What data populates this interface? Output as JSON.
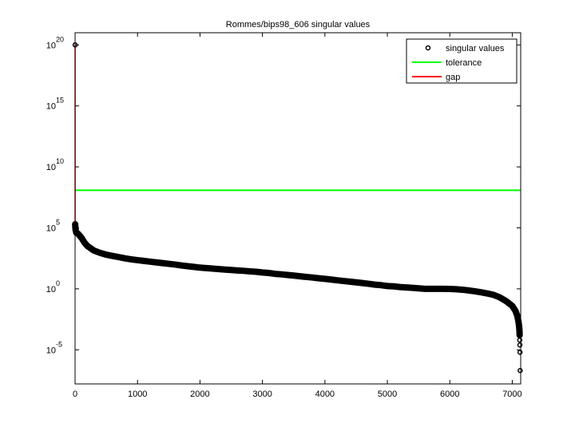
{
  "chart_data": {
    "type": "scatter",
    "title": "Rommes/bips98_606 singular values",
    "xlabel": "",
    "ylabel": "",
    "xlim": [
      0,
      7135
    ],
    "ylim": [
      1.6e-08,
      1e+21
    ],
    "yscale": "log",
    "grid": false,
    "legend_placement": "top-right",
    "x_ticks": [
      0,
      1000,
      2000,
      3000,
      4000,
      5000,
      6000,
      7000
    ],
    "x_tick_labels": [
      "0",
      "1000",
      "2000",
      "3000",
      "4000",
      "5000",
      "6000",
      "7000"
    ],
    "y_ticks": [
      1e-05,
      1,
      100000.0,
      10000000000.0,
      1000000000000000.0,
      1e+20
    ],
    "y_tick_base": "10",
    "y_tick_exponents": [
      "-5",
      "0",
      "5",
      "10",
      "15",
      "20"
    ],
    "legend": [
      {
        "label": "singular values",
        "kind": "marker",
        "color": "#000000"
      },
      {
        "label": "tolerance",
        "kind": "line",
        "color": "#00ff00"
      },
      {
        "label": "gap",
        "kind": "line",
        "color": "#ff0000"
      }
    ],
    "series": [
      {
        "name": "singular values",
        "color": "#000000",
        "marker": "circle",
        "x": [
          1,
          2,
          5,
          10,
          20,
          50,
          100,
          150,
          200,
          300,
          400,
          500,
          600,
          700,
          800,
          900,
          1000,
          1100,
          1200,
          1300,
          1400,
          1500,
          1600,
          1700,
          1800,
          1900,
          2000,
          2100,
          2200,
          2300,
          2400,
          2500,
          2600,
          2700,
          2800,
          2900,
          3000,
          3100,
          3200,
          3300,
          3400,
          3500,
          3600,
          3700,
          3800,
          3900,
          4000,
          4100,
          4200,
          4300,
          4400,
          4500,
          4600,
          4700,
          4800,
          4900,
          5000,
          5100,
          5200,
          5300,
          5400,
          5500,
          5600,
          5700,
          5800,
          5900,
          6000,
          6100,
          6200,
          6300,
          6400,
          6500,
          6600,
          6700,
          6800,
          6900,
          7000,
          7050,
          7080,
          7100,
          7110,
          7115,
          7118,
          7120,
          7122,
          7124,
          7126
        ],
        "y": [
          1e+20,
          200000.0,
          100000.0,
          63000.0,
          40000.0,
          32000.0,
          16000.0,
          6300.0,
          3200.0,
          1400.0,
          890,
          630,
          500,
          400,
          316,
          263,
          224,
          195,
          170,
          148,
          129,
          112,
          98,
          83,
          72,
          63,
          55,
          50,
          46,
          42,
          38,
          35,
          32,
          30,
          27,
          25,
          22,
          20,
          17,
          15.5,
          13.8,
          12.3,
          10.7,
          9.5,
          8.5,
          7.4,
          6.6,
          5.8,
          5.0,
          4.4,
          3.9,
          3.4,
          3.0,
          2.6,
          2.2,
          2.0,
          1.7,
          1.6,
          1.4,
          1.3,
          1.2,
          1.1,
          1,
          1,
          1,
          1,
          0.98,
          0.93,
          0.85,
          0.74,
          0.63,
          0.52,
          0.42,
          0.32,
          0.2,
          0.1,
          0.04,
          0.016,
          0.0063,
          0.002,
          0.00079,
          0.0004,
          0.00016,
          6.3e-05,
          2.5e-05,
          6.3e-06,
          2e-07
        ]
      },
      {
        "name": "tolerance",
        "color": "#00ff00",
        "type": "hline",
        "y": 120000000.0
      },
      {
        "name": "gap",
        "color": "#ff0000",
        "type": "vline",
        "x": 1,
        "y_range": [
          300000.0,
          1e+20
        ]
      }
    ]
  }
}
